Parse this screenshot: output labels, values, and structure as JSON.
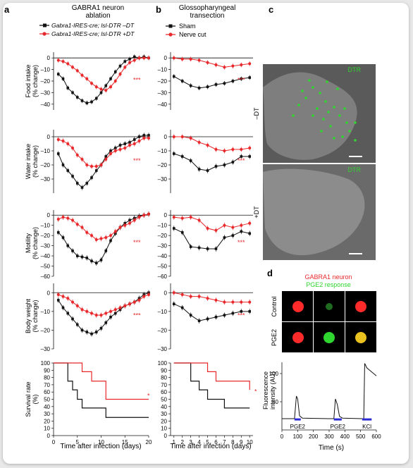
{
  "colors": {
    "black_series": "#111111",
    "red_series": "#e8282b",
    "dtr_green": "#2fd62f",
    "neuron_red": "#ff2a2a",
    "kcl_bar": "#2b2bd6",
    "pge2_bar": "#2b2bd6"
  },
  "panel_letters": {
    "a": "a",
    "b": "b",
    "c": "c",
    "d": "d"
  },
  "panel_a": {
    "title_line1": "GABRA1 neuron",
    "title_line2": "ablation",
    "legend": [
      "Gabra1-IRES-cre; lsl-DTR –DT",
      "Gabra1-IRES-cre; lsl-DTR +DT"
    ],
    "xlabel": "Time after infection (days)",
    "significance": "***",
    "survival_significance": "*"
  },
  "panel_b": {
    "title_line1": "Glossopharyngeal",
    "title_line2": "transection",
    "legend": [
      "Sham",
      "Nerve cut"
    ],
    "xlabel": "Time after infection (days)",
    "significance": "***",
    "survival_significance": "*"
  },
  "panel_c": {
    "label_top": "–DT",
    "label_bottom": "+DT",
    "stain": "DTR"
  },
  "panel_d": {
    "line1": "GABRA1 neuron",
    "line2": "PGE2 response",
    "row1": "Control",
    "row2": "PGE2",
    "stim": [
      "PGE2",
      "PGE2",
      "KCl"
    ],
    "ylabel_line1": "Fluorescence",
    "ylabel_line2": "intensity (AU)",
    "xlabel": "Time (s)"
  },
  "chart_data": [
    {
      "id": "a-food",
      "type": "line",
      "ylabel_line1": "Food intake",
      "ylabel_line2": "(% change)",
      "ylim": [
        -45,
        5
      ],
      "yticks": [
        0,
        -10,
        -20,
        -30,
        -40
      ],
      "x": [
        1,
        2,
        3,
        4,
        5,
        6,
        7,
        8,
        9,
        10,
        11,
        12,
        13,
        14,
        15,
        16,
        17,
        18,
        19,
        20
      ],
      "series": [
        {
          "name": "–DT",
          "values": [
            -14,
            -18,
            -26,
            -30,
            -34,
            -37,
            -39,
            -38,
            -35,
            -30,
            -24,
            -18,
            -12,
            -7,
            -3,
            -1,
            1,
            0,
            1,
            0
          ]
        },
        {
          "name": "+DT",
          "values": [
            -2,
            -3,
            -5,
            -8,
            -11,
            -15,
            -18,
            -22,
            -25,
            -27,
            -28,
            -25,
            -20,
            -14,
            -8,
            -4,
            -2,
            0,
            0,
            0
          ]
        }
      ]
    },
    {
      "id": "a-water",
      "type": "line",
      "ylabel_line1": "Water intake",
      "ylabel_line2": "(% change)",
      "ylim": [
        -40,
        5
      ],
      "yticks": [
        0,
        -10,
        -20,
        -30
      ],
      "x": [
        1,
        2,
        3,
        4,
        5,
        6,
        7,
        8,
        9,
        10,
        11,
        12,
        13,
        14,
        15,
        16,
        17,
        18,
        19,
        20
      ],
      "series": [
        {
          "name": "–DT",
          "values": [
            -12,
            -20,
            -24,
            -28,
            -33,
            -36,
            -33,
            -29,
            -24,
            -20,
            -14,
            -10,
            -8,
            -6,
            -5,
            -4,
            -2,
            0,
            1,
            1
          ]
        },
        {
          "name": "+DT",
          "values": [
            -2,
            -3,
            -5,
            -8,
            -13,
            -16,
            -20,
            -21,
            -21,
            -20,
            -16,
            -12,
            -10,
            -9,
            -8,
            -6,
            -5,
            -3,
            -1,
            -1
          ]
        }
      ]
    },
    {
      "id": "a-motility",
      "type": "line",
      "ylabel_line1": "Motility",
      "ylabel_line2": "(% change)",
      "ylim": [
        -60,
        5
      ],
      "yticks": [
        0,
        -10,
        -20,
        -30,
        -40,
        -50,
        -60
      ],
      "x": [
        1,
        2,
        3,
        4,
        5,
        6,
        7,
        8,
        9,
        10,
        11,
        12,
        13,
        14,
        15,
        16,
        17,
        18,
        19,
        20
      ],
      "series": [
        {
          "name": "–DT",
          "values": [
            -17,
            -22,
            -30,
            -35,
            -40,
            -41,
            -42,
            -45,
            -47,
            -44,
            -35,
            -25,
            -18,
            -12,
            -8,
            -5,
            -3,
            -1,
            0,
            1
          ]
        },
        {
          "name": "+DT",
          "values": [
            -4,
            -2,
            -3,
            -5,
            -9,
            -12,
            -17,
            -20,
            -24,
            -23,
            -22,
            -20,
            -16,
            -12,
            -10,
            -8,
            -5,
            -2,
            0,
            1
          ]
        }
      ]
    },
    {
      "id": "a-bodyweight",
      "type": "line",
      "ylabel_line1": "Body weight",
      "ylabel_line2": "(% change)",
      "ylim": [
        -30,
        5
      ],
      "yticks": [
        0,
        -10,
        -20,
        -30
      ],
      "x": [
        1,
        2,
        3,
        4,
        5,
        6,
        7,
        8,
        9,
        10,
        11,
        12,
        13,
        14,
        15,
        16,
        17,
        18,
        19,
        20
      ],
      "series": [
        {
          "name": "–DT",
          "values": [
            -4,
            -8,
            -11,
            -14,
            -17,
            -20,
            -21,
            -22,
            -21,
            -19,
            -16,
            -13,
            -11,
            -9,
            -7,
            -6,
            -5,
            -3,
            -1,
            0
          ]
        },
        {
          "name": "+DT",
          "values": [
            -1,
            -2,
            -3,
            -5,
            -7,
            -9,
            -10,
            -11,
            -12,
            -12,
            -11,
            -10,
            -9,
            -8,
            -7,
            -6,
            -5,
            -4,
            -2,
            -1
          ]
        }
      ]
    },
    {
      "id": "a-survival",
      "type": "line",
      "step": true,
      "ylabel_line1": "Survival rate",
      "ylabel_line2": "(%)",
      "ylim": [
        0,
        100
      ],
      "yticks": [
        0,
        10,
        20,
        30,
        40,
        50,
        60,
        70,
        80,
        90,
        100
      ],
      "xlim": [
        0,
        20
      ],
      "xticks": [
        0,
        5,
        10,
        15,
        20
      ],
      "series": [
        {
          "name": "–DT",
          "steps": [
            [
              2,
              100
            ],
            [
              3,
              75
            ],
            [
              4,
              63
            ],
            [
              5,
              50
            ],
            [
              6,
              38
            ],
            [
              11,
              25
            ],
            [
              20,
              25
            ]
          ]
        },
        {
          "name": "+DT",
          "steps": [
            [
              2,
              100
            ],
            [
              6,
              88
            ],
            [
              8,
              75
            ],
            [
              11,
              50
            ],
            [
              20,
              50
            ]
          ]
        }
      ]
    },
    {
      "id": "b-food",
      "type": "line",
      "ylim": [
        -45,
        5
      ],
      "yticks": [
        0,
        -10,
        -20,
        -30,
        -40
      ],
      "x": [
        1,
        2,
        3,
        4,
        5,
        6,
        7,
        8,
        9,
        10
      ],
      "series": [
        {
          "name": "Sham",
          "values": [
            -16,
            -20,
            -24,
            -26,
            -25,
            -23,
            -22,
            -20,
            -18,
            -17
          ]
        },
        {
          "name": "Nerve cut",
          "values": [
            0,
            -1,
            -1,
            -2,
            -4,
            -6,
            -8,
            -7,
            -6,
            -5
          ]
        }
      ]
    },
    {
      "id": "b-water",
      "type": "line",
      "ylim": [
        -40,
        5
      ],
      "yticks": [
        0,
        -10,
        -20,
        -30
      ],
      "x": [
        1,
        2,
        3,
        4,
        5,
        6,
        7,
        8,
        9,
        10
      ],
      "series": [
        {
          "name": "Sham",
          "values": [
            -12,
            -14,
            -17,
            -23,
            -24,
            -21,
            -20,
            -18,
            -14,
            -14
          ]
        },
        {
          "name": "Nerve cut",
          "values": [
            0,
            0,
            -1,
            -4,
            -6,
            -9,
            -10,
            -9,
            -9,
            -8
          ]
        }
      ]
    },
    {
      "id": "b-motility",
      "type": "line",
      "ylim": [
        -60,
        5
      ],
      "yticks": [
        0,
        -10,
        -20,
        -30,
        -40,
        -50,
        -60
      ],
      "x": [
        1,
        2,
        3,
        4,
        5,
        6,
        7,
        8,
        9,
        10
      ],
      "series": [
        {
          "name": "Sham",
          "values": [
            -13,
            -17,
            -31,
            -32,
            -33,
            -33,
            -22,
            -20,
            -16,
            -18
          ]
        },
        {
          "name": "Nerve cut",
          "values": [
            -2,
            -3,
            -2,
            -5,
            -13,
            -15,
            -10,
            -12,
            -10,
            -8
          ]
        }
      ]
    },
    {
      "id": "b-bodyweight",
      "type": "line",
      "ylim": [
        -30,
        5
      ],
      "yticks": [
        0,
        -10,
        -20,
        -30
      ],
      "x": [
        1,
        2,
        3,
        4,
        5,
        6,
        7,
        8,
        9,
        10
      ],
      "series": [
        {
          "name": "Sham",
          "values": [
            -6,
            -8,
            -12,
            -15,
            -14,
            -13,
            -12,
            -11,
            -10,
            -10
          ]
        },
        {
          "name": "Nerve cut",
          "values": [
            0,
            -1,
            -2,
            -2,
            -3,
            -4,
            -5,
            -5,
            -5,
            -5
          ]
        }
      ]
    },
    {
      "id": "b-survival",
      "type": "line",
      "step": true,
      "ylim": [
        0,
        100
      ],
      "yticks": [
        0,
        10,
        20,
        30,
        40,
        50,
        60,
        70,
        80,
        90,
        100
      ],
      "xlim": [
        1,
        10
      ],
      "xticks": [
        1,
        2,
        3,
        4,
        5,
        6,
        7,
        8,
        9,
        10
      ],
      "series": [
        {
          "name": "Sham",
          "steps": [
            [
              2,
              100
            ],
            [
              3,
              75
            ],
            [
              4,
              63
            ],
            [
              5,
              50
            ],
            [
              7,
              38
            ],
            [
              10,
              38
            ]
          ]
        },
        {
          "name": "Nerve cut",
          "steps": [
            [
              3,
              100
            ],
            [
              5,
              88
            ],
            [
              6,
              75
            ],
            [
              10,
              63
            ]
          ]
        }
      ]
    },
    {
      "id": "d-trace",
      "type": "line",
      "ylim": [
        0,
        120
      ],
      "yticks": [
        50,
        100
      ],
      "xlim": [
        0,
        600
      ],
      "xticks": [
        0,
        100,
        200,
        300,
        400,
        500,
        600
      ],
      "series": [
        {
          "name": "Fluorescence",
          "points": [
            [
              0,
              20
            ],
            [
              80,
              20
            ],
            [
              92,
              60
            ],
            [
              100,
              55
            ],
            [
              112,
              25
            ],
            [
              130,
              21
            ],
            [
              300,
              20
            ],
            [
              330,
              20
            ],
            [
              340,
              55
            ],
            [
              352,
              45
            ],
            [
              366,
              24
            ],
            [
              385,
              21
            ],
            [
              510,
              20
            ],
            [
              520,
              20
            ],
            [
              526,
              118
            ],
            [
              540,
              110
            ],
            [
              570,
              103
            ],
            [
              600,
              96
            ]
          ]
        }
      ],
      "stimuli": [
        {
          "label": "PGE2",
          "start": 80,
          "end": 120
        },
        {
          "label": "PGE2",
          "start": 330,
          "end": 380
        },
        {
          "label": "KCl",
          "start": 510,
          "end": 570
        }
      ]
    }
  ]
}
